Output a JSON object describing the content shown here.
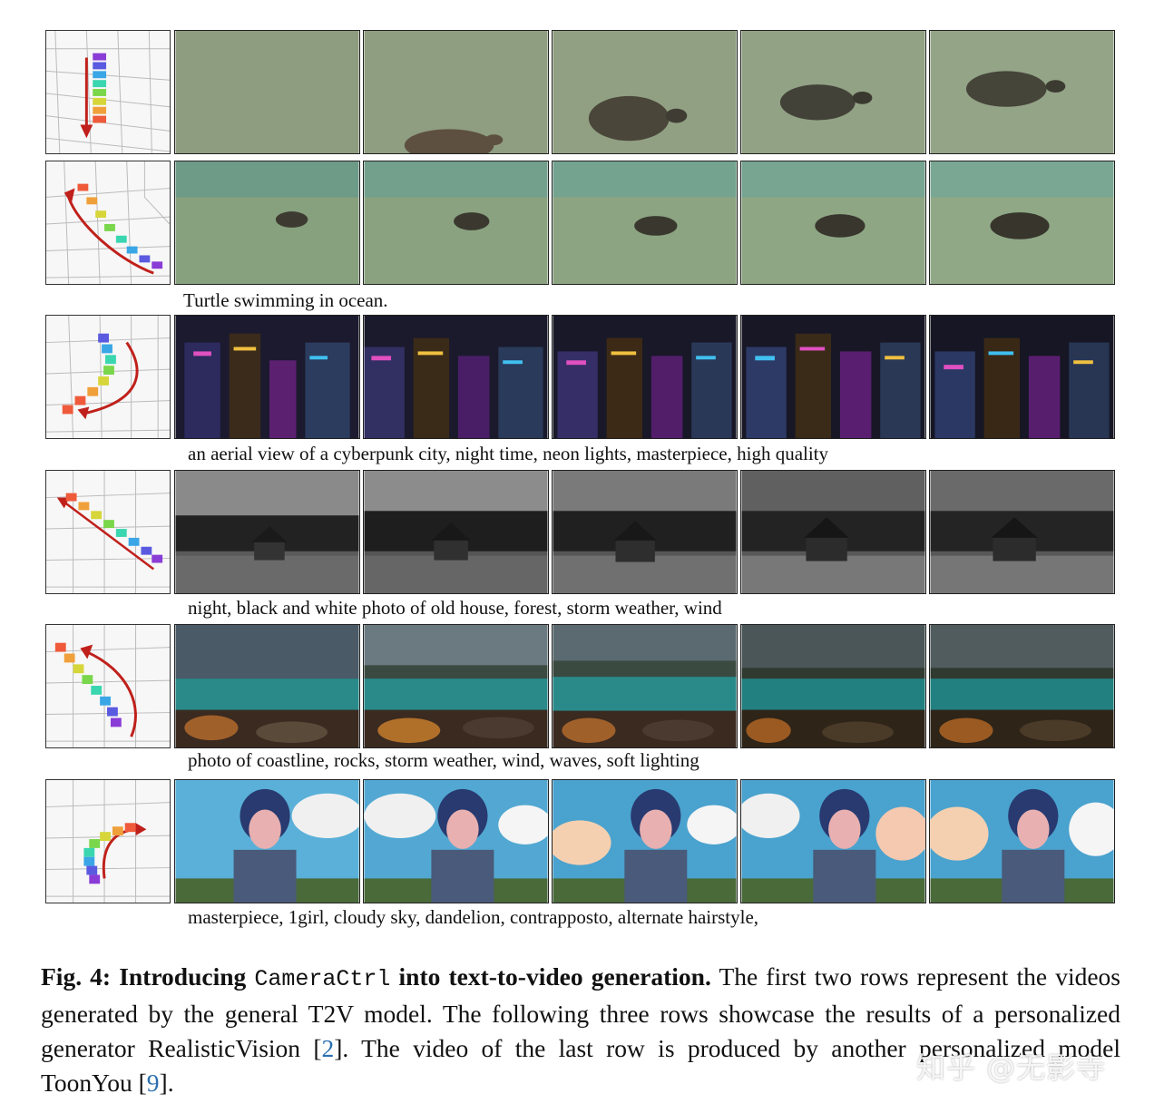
{
  "rows": [
    {
      "prompt": ""
    },
    {
      "prompt": "Turtle swimming in ocean."
    },
    {
      "prompt": "an aerial view of a cyberpunk city, night time, neon lights, masterpiece, high quality"
    },
    {
      "prompt": "night, black and white photo of old house, forest, storm weather, wind"
    },
    {
      "prompt": "photo of coastline, rocks, storm weather, wind, waves, soft lighting"
    },
    {
      "prompt": "masterpiece, 1girl, cloudy sky, dandelion, contrapposto, alternate hairstyle,"
    }
  ],
  "caption": {
    "label": "Fig. 4:",
    "title_a": "Introducing",
    "title_code": "CameraCtrl",
    "title_b": "into text-to-video generation.",
    "text_1": "The first two rows represent the videos generated by the general T2V model. The following three rows showcase the results of a personalized generator RealisticVision [",
    "ref_1": "2",
    "text_2": "]. The video of the last row is produced by another personalized model ToonYou [",
    "ref_2": "9",
    "text_3": "]."
  },
  "watermark": "知乎 @无影寺"
}
